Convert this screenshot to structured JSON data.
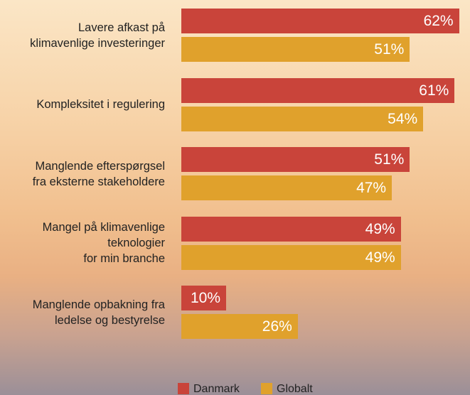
{
  "chart_data": {
    "type": "bar",
    "orientation": "horizontal",
    "categories": [
      "Lavere afkast på\nklimavenlige investeringer",
      "Kompleksitet i regulering",
      "Manglende efterspørgsel\nfra eksterne stakeholdere",
      "Mangel på klimavenlige\nteknologier\nfor min branche",
      "Manglende opbakning fra\nledelse og bestyrelse"
    ],
    "series": [
      {
        "name": "Danmark",
        "color": "#c9443a",
        "values": [
          62,
          61,
          51,
          49,
          10
        ],
        "value_labels": [
          "62%",
          "61%",
          "51%",
          "49%",
          "10%"
        ]
      },
      {
        "name": "Globalt",
        "color": "#e0a12c",
        "values": [
          51,
          54,
          47,
          49,
          26
        ],
        "value_labels": [
          "51%",
          "54%",
          "47%",
          "49%",
          "26%"
        ]
      }
    ]
  }
}
